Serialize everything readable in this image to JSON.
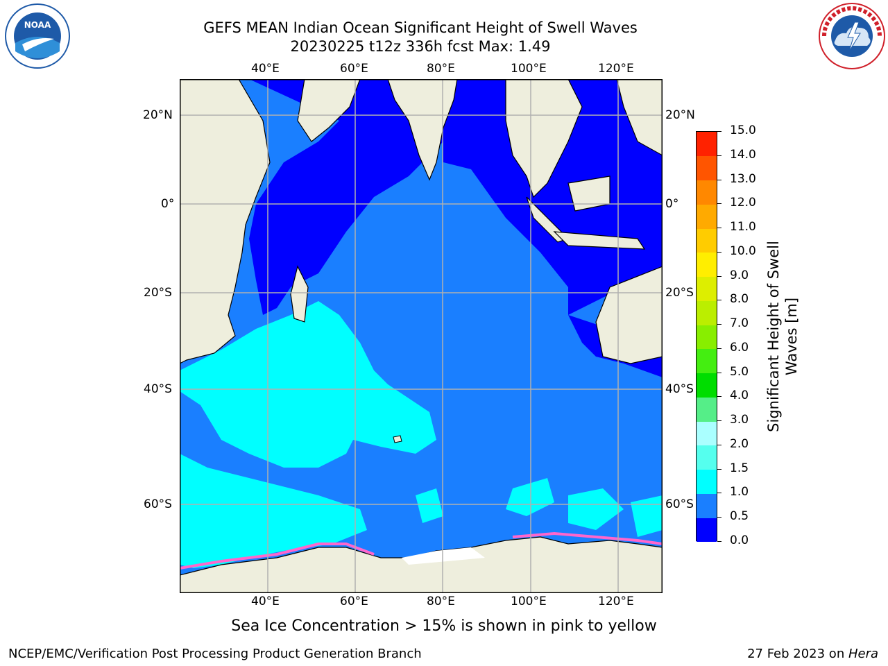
{
  "title": {
    "line1": "GEFS MEAN Indian Ocean Significant Height of Swell Waves",
    "line2": "20230225 t12z 336h fcst   Max: 1.49"
  },
  "logos": {
    "left": {
      "text": "NOAA",
      "icon": "noaa-logo-icon",
      "color": "#1e5aa8"
    },
    "right": {
      "text": "NATIONAL WEATHER SERVICE",
      "icon": "nws-logo-icon",
      "color": "#d0202a"
    }
  },
  "map": {
    "lon_ticks": [
      "40°E",
      "60°E",
      "80°E",
      "100°E",
      "120°E"
    ],
    "lat_ticks": [
      "20°N",
      "0°",
      "20°S",
      "40°S",
      "60°S"
    ],
    "colors": {
      "land": "#eeeedd",
      "ice": "#ffffff",
      "swell_0_0_5": "#0000ff",
      "swell_0_5_1": "#1a7fff",
      "swell_1_1_5": "#00ffff"
    }
  },
  "colorbar": {
    "label": "Significant Height of Swell Waves [m]",
    "levels": [
      "0.0",
      "0.5",
      "1.0",
      "1.5",
      "2.0",
      "3.0",
      "4.0",
      "5.0",
      "6.0",
      "7.0",
      "8.0",
      "9.0",
      "10.0",
      "11.0",
      "12.0",
      "13.0",
      "14.0",
      "15.0"
    ],
    "colors": [
      "#0000ff",
      "#1a7fff",
      "#00ffff",
      "#55ffee",
      "#aaffff",
      "#55ee88",
      "#00dd00",
      "#44ee11",
      "#88ee00",
      "#bbee00",
      "#ddee00",
      "#ffee00",
      "#ffcc00",
      "#ffaa00",
      "#ff8800",
      "#ff5500",
      "#ff2200"
    ]
  },
  "caption": "Sea Ice Concentration > 15% is shown in pink to yellow",
  "footer": {
    "left": "NCEP/EMC/Verification Post Processing Product Generation Branch",
    "date": "27 Feb 2023 on ",
    "machine": "Hera"
  }
}
